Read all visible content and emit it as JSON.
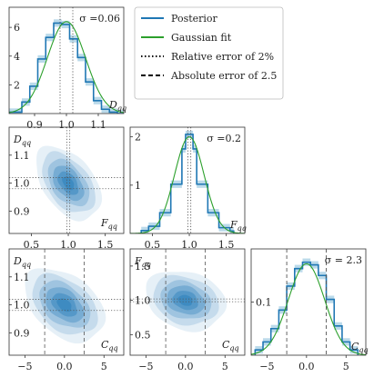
{
  "legend": {
    "items": [
      {
        "label": "Posterior",
        "style": "solid",
        "color": "#1f77b4"
      },
      {
        "label": "Gaussian fit",
        "style": "solid",
        "color": "#2ca02c"
      },
      {
        "label": "Relative error of 2%",
        "style": "dotted",
        "color": "#000000"
      },
      {
        "label": "Absolute error of 2.5",
        "style": "dashed",
        "color": "#000000"
      }
    ],
    "placement": "top-right"
  },
  "colors": {
    "posterior": "#1f77b4",
    "gaussian": "#2ca02c",
    "band": "#9ecae1",
    "guide": "#555555",
    "kde": "#3182bd"
  },
  "chart_data": [
    {
      "type": "histogram",
      "panel": "D_qq marginal",
      "annotation": "σ =0.06",
      "xlabel": "D_{qq}",
      "xlim": [
        0.82,
        1.18
      ],
      "ylim": [
        0,
        7.4
      ],
      "xticks": [
        0.9,
        1.0,
        1.1
      ],
      "yticks": [
        2,
        4,
        6
      ],
      "bin_edges": [
        0.82,
        0.86,
        0.885,
        0.91,
        0.935,
        0.96,
        0.985,
        1.01,
        1.035,
        1.06,
        1.085,
        1.11,
        1.135,
        1.16,
        1.18
      ],
      "values": [
        0.1,
        0.8,
        1.9,
        3.8,
        5.3,
        6.3,
        6.2,
        5.2,
        3.9,
        2.2,
        0.9,
        0.3,
        0.1,
        0.0
      ],
      "gaussian": {
        "mean": 1.0,
        "sigma": 0.06,
        "peak": 6.4
      },
      "relative_error_lines": [
        0.98,
        1.02
      ],
      "absolute_error_lines": []
    },
    {
      "type": "contour",
      "panel": "D_qq vs F_qq",
      "xlabel": "F_{qq}",
      "ylabel": "D_{qq}",
      "xlim": [
        0.2,
        1.75
      ],
      "ylim": [
        0.82,
        1.2
      ],
      "xticks": [
        0.5,
        1.0,
        1.5
      ],
      "yticks": [
        0.9,
        1.0,
        1.1
      ],
      "center": [
        1.0,
        1.0
      ],
      "sigma": [
        0.2,
        0.06
      ],
      "correlation": -0.45,
      "relative_error_lines_x": [
        0.98,
        1.02
      ],
      "relative_error_lines_y": [
        0.98,
        1.02
      ]
    },
    {
      "type": "histogram",
      "panel": "F_qq marginal",
      "annotation": "σ =0.2",
      "xlabel": "F_{qq}",
      "xlim": [
        0.2,
        1.75
      ],
      "ylim": [
        0,
        2.2
      ],
      "xticks": [
        0.5,
        1.0,
        1.5
      ],
      "yticks": [
        1,
        2
      ],
      "bin_edges": [
        0.35,
        0.45,
        0.6,
        0.75,
        0.9,
        0.95,
        1.05,
        1.1,
        1.25,
        1.4,
        1.55,
        1.6
      ],
      "values": [
        0.06,
        0.15,
        0.43,
        1.02,
        1.75,
        2.05,
        1.75,
        1.02,
        0.43,
        0.12,
        0.05
      ],
      "gaussian": {
        "mean": 1.0,
        "sigma": 0.2,
        "peak": 2.0
      },
      "relative_error_lines": [
        0.98,
        1.02
      ],
      "absolute_error_lines": []
    },
    {
      "type": "contour",
      "panel": "D_qq vs C_qq",
      "xlabel": "C_{qq}",
      "ylabel": "D_{qq}",
      "xlim": [
        -7,
        7.5
      ],
      "ylim": [
        0.82,
        1.2
      ],
      "xticks": [
        -5,
        0,
        5
      ],
      "yticks": [
        0.9,
        1.0,
        1.1
      ],
      "center": [
        0.0,
        1.0
      ],
      "sigma": [
        2.3,
        0.06
      ],
      "correlation": -0.4,
      "absolute_error_lines_x": [
        -2.5,
        2.5
      ],
      "relative_error_lines_y": [
        0.98,
        1.02
      ]
    },
    {
      "type": "contour",
      "panel": "F_qq vs C_qq",
      "xlabel": "C_{qq}",
      "ylabel": "F_{qq}",
      "xlim": [
        -7,
        7.5
      ],
      "ylim": [
        0.2,
        1.75
      ],
      "xticks": [
        -5,
        0,
        5
      ],
      "yticks": [
        0.5,
        1.0,
        1.5
      ],
      "center": [
        0.0,
        1.0
      ],
      "sigma": [
        2.3,
        0.2
      ],
      "correlation": -0.2,
      "absolute_error_lines_x": [
        -2.5,
        2.5
      ],
      "relative_error_lines_y": [
        0.98,
        1.02
      ]
    },
    {
      "type": "histogram",
      "panel": "C_qq marginal",
      "annotation": "σ = 2.3",
      "xlabel": "C_{qq}",
      "xlim": [
        -7,
        7.5
      ],
      "ylim": [
        0,
        0.2
      ],
      "xticks": [
        -5,
        0,
        5
      ],
      "yticks": [
        0.1
      ],
      "bin_edges": [
        -6.5,
        -5.5,
        -4.5,
        -3.5,
        -2.5,
        -1.5,
        -0.5,
        0.5,
        1.5,
        2.5,
        3.5,
        4.5,
        5.5,
        6.5
      ],
      "values": [
        0.01,
        0.025,
        0.05,
        0.085,
        0.13,
        0.163,
        0.175,
        0.17,
        0.15,
        0.105,
        0.055,
        0.025,
        0.01
      ],
      "gaussian": {
        "mean": 0.0,
        "sigma": 2.3,
        "peak": 0.172
      },
      "relative_error_lines": [],
      "absolute_error_lines": [
        -2.5,
        2.5
      ]
    }
  ]
}
